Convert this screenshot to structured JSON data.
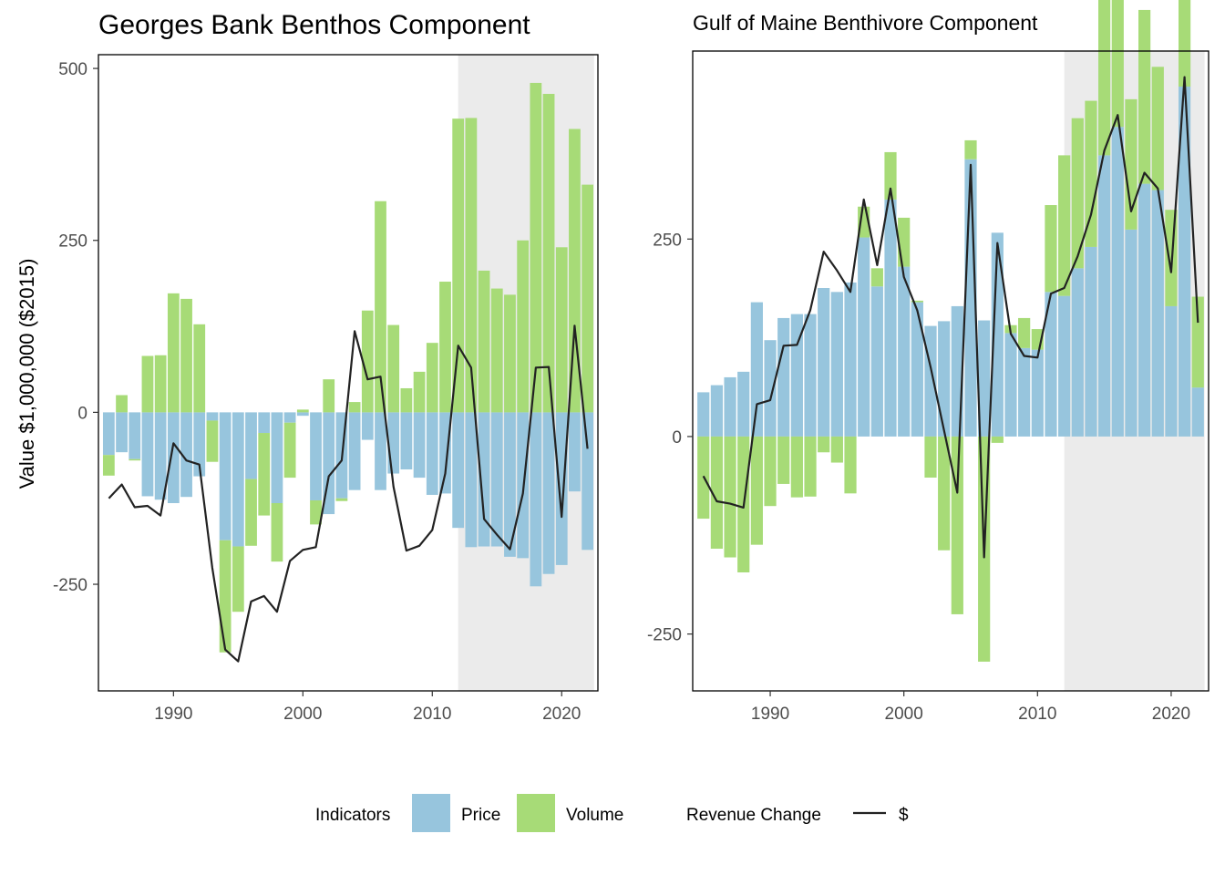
{
  "colors": {
    "price": "#97c5dd",
    "volume": "#a7db77",
    "line": "#222222",
    "shade": "#ebebeb"
  },
  "y_label": "Value $1,000,000 ($2015)",
  "legend": {
    "indicators_title": "Indicators",
    "price_label": "Price",
    "volume_label": "Volume",
    "revenue_title": "Revenue Change",
    "revenue_label": "$"
  },
  "chart_data": [
    {
      "type": "bar",
      "title": "Georges Bank Benthos Component",
      "xlim": [
        1984.2,
        2022.8
      ],
      "ylim": [
        -405,
        520
      ],
      "xticks": [
        1990,
        2000,
        2010,
        2020
      ],
      "yticks": [
        -250,
        0,
        250,
        500
      ],
      "shaded_region": [
        2012,
        2022
      ],
      "x": [
        1985,
        1986,
        1987,
        1988,
        1989,
        1990,
        1991,
        1992,
        1993,
        1994,
        1995,
        1996,
        1997,
        1998,
        1999,
        2000,
        2001,
        2002,
        2003,
        2004,
        2005,
        2006,
        2007,
        2008,
        2009,
        2010,
        2011,
        2012,
        2013,
        2014,
        2015,
        2016,
        2017,
        2018,
        2019,
        2020,
        2021,
        2022
      ],
      "series": [
        {
          "name": "Price",
          "values": [
            -62,
            -58,
            -68,
            -122,
            -127,
            -132,
            -123,
            -93,
            -12,
            -186,
            -195,
            -97,
            -30,
            -132,
            -15,
            -5,
            -128,
            -148,
            -125,
            -113,
            -40,
            -113,
            -89,
            -83,
            -95,
            -120,
            -118,
            -168,
            -196,
            -195,
            -195,
            -210,
            -212,
            -253,
            -235,
            -222,
            -115,
            -200
          ]
        },
        {
          "name": "Volume",
          "values": [
            -30,
            25,
            -2,
            82,
            83,
            173,
            165,
            128,
            -60,
            -163,
            -95,
            -97,
            -120,
            -85,
            -80,
            4,
            -35,
            48,
            -4,
            15,
            148,
            307,
            127,
            35,
            59,
            101,
            190,
            427,
            428,
            206,
            180,
            171,
            250,
            479,
            463,
            240,
            412,
            331
          ]
        },
        {
          "name": "$",
          "values": [
            -125,
            -105,
            -138,
            -136,
            -150,
            -45,
            -70,
            -76,
            -226,
            -345,
            -362,
            -275,
            -267,
            -290,
            -216,
            -200,
            -196,
            -93,
            -70,
            118,
            48,
            52,
            -108,
            -201,
            -194,
            -171,
            -89,
            97,
            65,
            -155,
            -178,
            -199,
            -118,
            65,
            66,
            -152,
            126,
            -53
          ]
        }
      ]
    },
    {
      "type": "bar",
      "title": "Gulf of Maine Benthivore Component",
      "xlim": [
        1984.2,
        2022.8
      ],
      "ylim": [
        -322,
        488
      ],
      "xticks": [
        1990,
        2000,
        2010,
        2020
      ],
      "yticks": [
        -250,
        0,
        250
      ],
      "shaded_region": [
        2012,
        2022
      ],
      "x": [
        1985,
        1986,
        1987,
        1988,
        1989,
        1990,
        1991,
        1992,
        1993,
        1994,
        1995,
        1996,
        1997,
        1998,
        1999,
        2000,
        2001,
        2002,
        2003,
        2004,
        2005,
        2006,
        2007,
        2008,
        2009,
        2010,
        2011,
        2012,
        2013,
        2014,
        2015,
        2016,
        2017,
        2018,
        2019,
        2020,
        2021,
        2022
      ],
      "series": [
        {
          "name": "Price",
          "values": [
            56,
            65,
            75,
            82,
            170,
            122,
            150,
            155,
            155,
            188,
            183,
            195,
            252,
            190,
            300,
            215,
            170,
            140,
            146,
            165,
            351,
            147,
            258,
            131,
            112,
            110,
            183,
            178,
            213,
            240,
            356,
            392,
            262,
            320,
            312,
            165,
            443,
            62
          ]
        },
        {
          "name": "Volume",
          "values": [
            -104,
            -142,
            -153,
            -172,
            -137,
            -88,
            -60,
            -77,
            -76,
            -20,
            -33,
            -72,
            39,
            23,
            60,
            62,
            2,
            -52,
            -144,
            -225,
            24,
            -285,
            -8,
            10,
            38,
            26,
            110,
            178,
            190,
            185,
            198,
            248,
            165,
            220,
            156,
            122,
            218,
            115
          ]
        },
        {
          "name": "$",
          "values": [
            -50,
            -82,
            -85,
            -90,
            41,
            46,
            115,
            116,
            160,
            234,
            210,
            183,
            300,
            217,
            314,
            202,
            160,
            88,
            8,
            -71,
            344,
            -153,
            245,
            130,
            102,
            100,
            181,
            188,
            228,
            281,
            362,
            407,
            285,
            334,
            314,
            208,
            455,
            144
          ]
        }
      ]
    }
  ]
}
